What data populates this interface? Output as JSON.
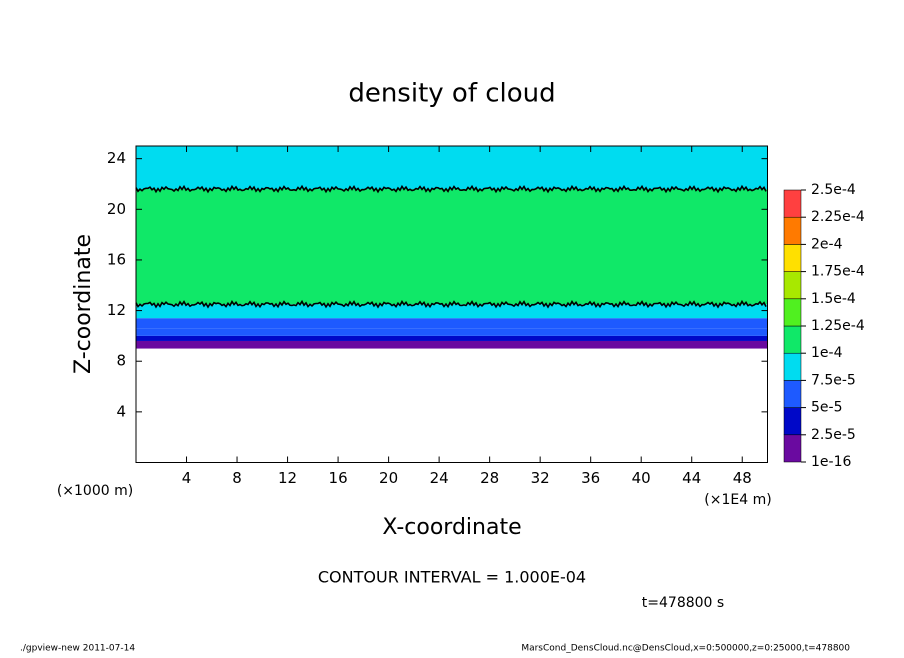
{
  "chart_data": {
    "type": "contour",
    "title": "density of cloud",
    "x_label": "X-coordinate",
    "y_label": "Z-coordinate",
    "y_unit": "(×1000 m)",
    "x_unit": "(×1E4 m)",
    "note": "CONTOUR INTERVAL = 1.000E-04",
    "time": "t=478800 s",
    "footer_left": "./gpview-new  2011-07-14",
    "footer_right": "MarsCond_DensCloud.nc@DensCloud,x=0:500000,z=0:25000,t=478800",
    "xlim": [
      0,
      50
    ],
    "xticks": [
      4,
      8,
      12,
      16,
      20,
      24,
      28,
      32,
      36,
      40,
      44,
      48
    ],
    "ylim": [
      0,
      25
    ],
    "yticks": [
      4,
      8,
      12,
      16,
      20,
      24
    ],
    "z_edges": [
      9,
      9.6,
      10,
      10.6,
      11.4,
      12.5,
      21.6,
      25
    ],
    "values": [
      1e-05,
      3e-05,
      6e-05,
      7e-05,
      9e-05,
      0.00011,
      9e-05
    ],
    "contour_interval": 0.0001,
    "levels": [
      {
        "value": 1e-16,
        "label": "1e-16"
      },
      {
        "value": 2.5e-05,
        "label": "2.5e-5"
      },
      {
        "value": 5e-05,
        "label": "5e-5"
      },
      {
        "value": 7.5e-05,
        "label": "7.5e-5"
      },
      {
        "value": 0.0001,
        "label": "1e-4"
      },
      {
        "value": 0.000125,
        "label": "1.25e-4"
      },
      {
        "value": 0.00015,
        "label": "1.5e-4"
      },
      {
        "value": 0.000175,
        "label": "1.75e-4"
      },
      {
        "value": 0.0002,
        "label": "2e-4"
      },
      {
        "value": 0.000225,
        "label": "2.25e-4"
      },
      {
        "value": 0.00025,
        "label": "2.5e-4"
      }
    ],
    "colors": [
      "#6a0aa0",
      "#0008c8",
      "#1e5aff",
      "#00dcf0",
      "#10e868",
      "#50f020",
      "#a8e800",
      "#ffe000",
      "#ff7a00",
      "#ff4040"
    ]
  }
}
